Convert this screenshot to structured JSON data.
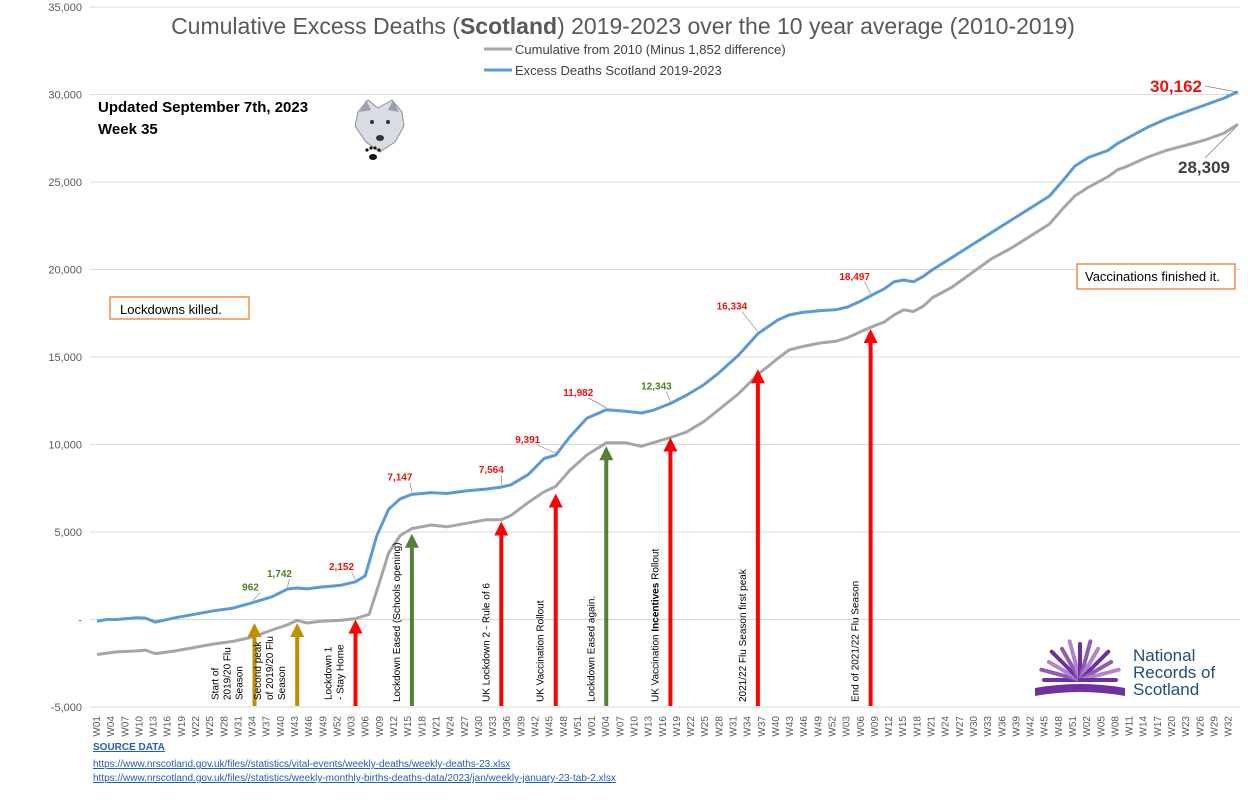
{
  "chart_data": {
    "type": "line",
    "title_parts": [
      "Cumulative Excess Deaths (",
      "Scotland",
      ") 2019-2023 over the 10 year average (2010-2019)"
    ],
    "ylim": [
      -5000,
      35000
    ],
    "yticks": [
      {
        "value": 35000,
        "label": "35,000"
      },
      {
        "value": 30000,
        "label": "30,000"
      },
      {
        "value": 25000,
        "label": "25,000"
      },
      {
        "value": 20000,
        "label": "20,000"
      },
      {
        "value": 15000,
        "label": "15,000"
      },
      {
        "value": 10000,
        "label": "10,000"
      },
      {
        "value": 5000,
        "label": "5,000"
      },
      {
        "value": 0,
        "label": "-"
      },
      {
        "value": -5000,
        "label": "-5,000"
      }
    ],
    "x_tick_labels": [
      "W01",
      "W04",
      "W07",
      "W10",
      "W13",
      "W16",
      "W19",
      "W22",
      "W25",
      "W28",
      "W31",
      "W34",
      "W37",
      "W40",
      "W43",
      "W46",
      "W49",
      "W52",
      "W03",
      "W06",
      "W09",
      "W12",
      "W15",
      "W18",
      "W21",
      "W24",
      "W27",
      "W30",
      "W33",
      "W36",
      "W39",
      "W42",
      "W45",
      "W48",
      "W51",
      "W01",
      "W04",
      "W07",
      "W10",
      "W13",
      "W16",
      "W19",
      "W22",
      "W25",
      "W28",
      "W31",
      "W34",
      "W37",
      "W40",
      "W43",
      "W46",
      "W49",
      "W52",
      "W03",
      "W06",
      "W09",
      "W12",
      "W15",
      "W18",
      "W21",
      "W24",
      "W27",
      "W30",
      "W33",
      "W36",
      "W39",
      "W42",
      "W45",
      "W48",
      "W51",
      "W02",
      "W05",
      "W08",
      "W11",
      "W14",
      "W17",
      "W20",
      "W23",
      "W26",
      "W29",
      "W32"
    ],
    "x_tick_spacing_weeks": 3,
    "total_weeks": 243,
    "series": [
      {
        "name": "Cumulative from 2010 (Minus 1,852 difference)",
        "color": "#a6a6a6",
        "points": [
          [
            0,
            -2000
          ],
          [
            10,
            -1850
          ],
          [
            20,
            -1800
          ],
          [
            25,
            -1750
          ],
          [
            30,
            -1950
          ],
          [
            40,
            -1800
          ],
          [
            50,
            -1600
          ],
          [
            60,
            -1400
          ],
          [
            70,
            -1250
          ],
          [
            80,
            -1000
          ],
          [
            90,
            -600
          ],
          [
            98,
            -300
          ],
          [
            103,
            -50
          ],
          [
            108,
            -200
          ],
          [
            115,
            -100
          ],
          [
            125,
            -50
          ],
          [
            133,
            50
          ],
          [
            140,
            300
          ],
          [
            145,
            2000
          ],
          [
            150,
            3800
          ],
          [
            156,
            4800
          ],
          [
            162,
            5200
          ],
          [
            172,
            5400
          ],
          [
            180,
            5300
          ],
          [
            190,
            5500
          ],
          [
            200,
            5700
          ],
          [
            208,
            5700
          ],
          [
            213,
            5950
          ],
          [
            222,
            6700
          ],
          [
            230,
            7300
          ],
          [
            236,
            7600
          ],
          [
            243,
            8500
          ],
          [
            252,
            9400
          ],
          [
            262,
            10100
          ],
          [
            272,
            10100
          ],
          [
            280,
            9900
          ],
          [
            286,
            10100
          ],
          [
            295,
            10400
          ],
          [
            303,
            10700
          ],
          [
            312,
            11300
          ],
          [
            320,
            12000
          ],
          [
            330,
            12900
          ],
          [
            340,
            14000
          ],
          [
            350,
            14900
          ],
          [
            356,
            15400
          ],
          [
            363,
            15600
          ],
          [
            372,
            15800
          ],
          [
            380,
            15900
          ],
          [
            386,
            16100
          ],
          [
            392,
            16400
          ],
          [
            398,
            16700
          ],
          [
            405,
            17000
          ],
          [
            410,
            17400
          ],
          [
            415,
            17700
          ],
          [
            420,
            17600
          ],
          [
            425,
            17900
          ],
          [
            430,
            18400
          ],
          [
            440,
            19000
          ],
          [
            450,
            19800
          ],
          [
            460,
            20600
          ],
          [
            470,
            21200
          ],
          [
            480,
            21900
          ],
          [
            490,
            22600
          ],
          [
            497,
            23500
          ],
          [
            503,
            24200
          ],
          [
            510,
            24700
          ],
          [
            520,
            25300
          ],
          [
            525,
            25700
          ],
          [
            530,
            25900
          ],
          [
            540,
            26400
          ],
          [
            550,
            26800
          ],
          [
            560,
            27100
          ],
          [
            570,
            27400
          ],
          [
            580,
            27800
          ],
          [
            587,
            28309
          ]
        ],
        "end_label": "28,309"
      },
      {
        "name": "Excess Deaths Scotland 2019-2023",
        "color": "#5b9bd5",
        "points": [
          [
            0,
            -100
          ],
          [
            5,
            0
          ],
          [
            10,
            0
          ],
          [
            20,
            100
          ],
          [
            25,
            80
          ],
          [
            30,
            -150
          ],
          [
            40,
            100
          ],
          [
            50,
            300
          ],
          [
            60,
            500
          ],
          [
            70,
            650
          ],
          [
            80,
            962
          ],
          [
            90,
            1300
          ],
          [
            98,
            1742
          ],
          [
            103,
            1800
          ],
          [
            108,
            1750
          ],
          [
            115,
            1850
          ],
          [
            125,
            1950
          ],
          [
            133,
            2152
          ],
          [
            138,
            2500
          ],
          [
            144,
            4800
          ],
          [
            150,
            6300
          ],
          [
            156,
            6900
          ],
          [
            162,
            7147
          ],
          [
            172,
            7250
          ],
          [
            180,
            7200
          ],
          [
            190,
            7350
          ],
          [
            200,
            7450
          ],
          [
            208,
            7564
          ],
          [
            213,
            7700
          ],
          [
            222,
            8300
          ],
          [
            230,
            9200
          ],
          [
            236,
            9391
          ],
          [
            243,
            10400
          ],
          [
            252,
            11500
          ],
          [
            262,
            11982
          ],
          [
            272,
            11900
          ],
          [
            280,
            11800
          ],
          [
            286,
            11950
          ],
          [
            295,
            12343
          ],
          [
            303,
            12800
          ],
          [
            312,
            13400
          ],
          [
            320,
            14100
          ],
          [
            330,
            15100
          ],
          [
            340,
            16334
          ],
          [
            350,
            17100
          ],
          [
            356,
            17400
          ],
          [
            363,
            17550
          ],
          [
            372,
            17650
          ],
          [
            380,
            17700
          ],
          [
            386,
            17850
          ],
          [
            392,
            18150
          ],
          [
            398,
            18497
          ],
          [
            405,
            18900
          ],
          [
            410,
            19300
          ],
          [
            415,
            19400
          ],
          [
            420,
            19300
          ],
          [
            425,
            19600
          ],
          [
            430,
            20000
          ],
          [
            440,
            20700
          ],
          [
            450,
            21400
          ],
          [
            460,
            22100
          ],
          [
            470,
            22800
          ],
          [
            480,
            23500
          ],
          [
            490,
            24200
          ],
          [
            497,
            25100
          ],
          [
            503,
            25900
          ],
          [
            510,
            26400
          ],
          [
            520,
            26800
          ],
          [
            525,
            27200
          ],
          [
            530,
            27500
          ],
          [
            540,
            28100
          ],
          [
            550,
            28600
          ],
          [
            560,
            29000
          ],
          [
            570,
            29400
          ],
          [
            580,
            29800
          ],
          [
            587,
            30162
          ]
        ],
        "end_label": "30,162"
      }
    ],
    "point_labels": [
      {
        "text": "962",
        "color": "green",
        "x": 80,
        "y": 962
      },
      {
        "text": "1,742",
        "color": "green",
        "x": 98,
        "y": 1742
      },
      {
        "text": "2,152",
        "color": "red",
        "x": 133,
        "y": 2152
      },
      {
        "text": "7,147",
        "color": "red",
        "x": 162,
        "y": 7147
      },
      {
        "text": "7,564",
        "color": "red",
        "x": 208,
        "y": 7564
      },
      {
        "text": "9,391",
        "color": "red",
        "x": 236,
        "y": 9391
      },
      {
        "text": "11,982",
        "color": "red",
        "x": 262,
        "y": 11982
      },
      {
        "text": "12,343",
        "color": "green",
        "x": 295,
        "y": 12343
      },
      {
        "text": "16,334",
        "color": "red",
        "x": 340,
        "y": 16334
      },
      {
        "text": "18,497",
        "color": "red",
        "x": 398,
        "y": 18497
      }
    ],
    "event_arrows": [
      {
        "lines": [
          "Start of",
          "2019/20 Flu",
          "Season"
        ],
        "color": "#bf9000",
        "x": 80,
        "top": -200,
        "orient": "h"
      },
      {
        "lines": [
          "Second peak",
          "of 2019/20 Flu",
          "Season"
        ],
        "color": "#bf9000",
        "x": 103,
        "top": -200,
        "orient": "h"
      },
      {
        "lines": [
          "Lockdown 1",
          "- Stay Home"
        ],
        "color": "#ff0000",
        "x": 133,
        "top": 0,
        "orient": "h"
      },
      {
        "lines": [
          "Lockdown Eased (Schools opening)"
        ],
        "color": "#548235",
        "x": 162,
        "top": 4900,
        "orient": "v"
      },
      {
        "lines": [
          "UK Lockdown 2 - Rule of 6"
        ],
        "color": "#ff0000",
        "x": 208,
        "top": 5600,
        "orient": "v"
      },
      {
        "lines": [
          "UK Vaccination Rollout"
        ],
        "color": "#ff0000",
        "x": 236,
        "top": 7200,
        "orient": "v"
      },
      {
        "lines": [
          "Lockdown Eased again."
        ],
        "color": "#548235",
        "x": 262,
        "top": 9900,
        "orient": "v"
      },
      {
        "lines": [
          "UK Vaccination ",
          "Incentives",
          " Rollout"
        ],
        "color": "#ff0000",
        "x": 295,
        "top": 10400,
        "orient": "v-rich"
      },
      {
        "lines": [
          "2021/22 Flu Season first peak"
        ],
        "color": "#ff0000",
        "x": 340,
        "top": 14300,
        "orient": "v"
      },
      {
        "lines": [
          "End of 2021/22 Flu Season"
        ],
        "color": "#ff0000",
        "x": 398,
        "top": 16600,
        "orient": "v"
      }
    ]
  },
  "annotations": {
    "updated": "Updated September 7th, 2023",
    "week": "Week 35",
    "lockdowns_note": "Lockdowns killed.",
    "vaccinations_note": "Vaccinations finished it.",
    "note_border_color": "#ed7d31"
  },
  "logo": {
    "line1": "National",
    "line2": "Records of",
    "line3": "Scotland",
    "colors": [
      "#7030a0",
      "#8e5bb5",
      "#ad86cc"
    ]
  },
  "mascot_icon": "wolf-head-with-paw-print-icon",
  "source": {
    "heading": "SOURCE DATA",
    "links": [
      "https://www.nrscotland.gov.uk/files//statistics/vital-events/weekly-deaths/weekly-deaths-23.xlsx",
      "https://www.nrscotland.gov.uk/files//statistics/weekly-monthly-births-deaths-data/2023/jan/weekly-january-23-tab-2.xlsx"
    ]
  }
}
